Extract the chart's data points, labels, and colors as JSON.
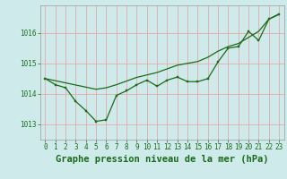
{
  "background_color": "#ceeaea",
  "grid_color": "#e8a8a8",
  "line_color": "#1a6b1a",
  "title": "Graphe pression niveau de la mer (hPa)",
  "ylim": [
    1012.5,
    1016.9
  ],
  "xlim": [
    -0.5,
    23.5
  ],
  "yticks": [
    1013,
    1014,
    1015,
    1016
  ],
  "xticks": [
    0,
    1,
    2,
    3,
    4,
    5,
    6,
    7,
    8,
    9,
    10,
    11,
    12,
    13,
    14,
    15,
    16,
    17,
    18,
    19,
    20,
    21,
    22,
    23
  ],
  "x": [
    0,
    1,
    2,
    3,
    4,
    5,
    6,
    7,
    8,
    9,
    10,
    11,
    12,
    13,
    14,
    15,
    16,
    17,
    18,
    19,
    20,
    21,
    22,
    23
  ],
  "y_detail": [
    1014.5,
    1014.3,
    1014.2,
    1013.75,
    1013.45,
    1013.1,
    1013.15,
    1013.95,
    1014.1,
    1014.3,
    1014.45,
    1014.25,
    1014.45,
    1014.55,
    1014.4,
    1014.4,
    1014.5,
    1015.05,
    1015.5,
    1015.55,
    1016.05,
    1015.75,
    1016.45,
    1016.6
  ],
  "y_smooth": [
    1014.5,
    1014.43,
    1014.36,
    1014.29,
    1014.22,
    1014.15,
    1014.2,
    1014.3,
    1014.42,
    1014.54,
    1014.62,
    1014.7,
    1014.82,
    1014.94,
    1015.0,
    1015.06,
    1015.2,
    1015.4,
    1015.55,
    1015.65,
    1015.85,
    1016.05,
    1016.45,
    1016.62
  ],
  "title_fontsize": 7.5,
  "tick_fontsize": 5.5
}
